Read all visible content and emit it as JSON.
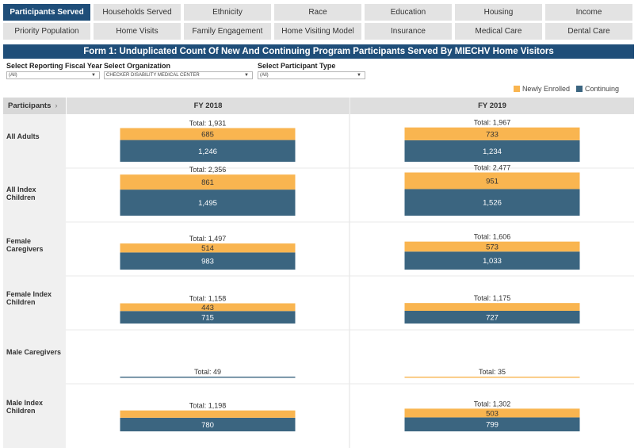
{
  "tabs_row1": [
    "Participants Served",
    "Households Served",
    "Ethnicity",
    "Race",
    "Education",
    "Housing",
    "Income"
  ],
  "tabs_row2": [
    "Priority Population",
    "Home Visits",
    "Family Engagement",
    "Home Visiting Model",
    "Insurance",
    "Medical Care",
    "Dental Care"
  ],
  "title": "Form 1: Unduplicated Count Of New And Continuing Program Participants Served By MIECHV Home Visitors",
  "filters": {
    "fiscal_year": {
      "label": "Select Reporting Fiscal Year",
      "value": "(All)"
    },
    "organization": {
      "label": "Select Organization",
      "value": "CHECKER DISABILITY MEDICAL CENTER"
    },
    "participant_type": {
      "label": "Select Participant Type",
      "value": "(All)"
    }
  },
  "table": {
    "row_header": "Participants",
    "sort_icon": "›"
  },
  "chart_data": {
    "type": "bar",
    "stacked": true,
    "orientation": "vertical-stack",
    "categories": [
      "All Adults",
      "All Index Children",
      "Female Caregivers",
      "Female Index Children",
      "Male Caregivers",
      "Male Index Children"
    ],
    "columns": [
      "FY 2018",
      "FY 2019"
    ],
    "series": [
      {
        "name": "Newly Enrolled",
        "color": "#f9b550",
        "values": {
          "FY 2018": [
            685,
            861,
            514,
            443,
            null,
            null
          ],
          "FY 2019": [
            733,
            951,
            573,
            null,
            null,
            503
          ]
        }
      },
      {
        "name": "Continuing",
        "color": "#3b6580",
        "values": {
          "FY 2018": [
            1246,
            1495,
            983,
            715,
            null,
            780
          ],
          "FY 2019": [
            1234,
            1526,
            1033,
            727,
            null,
            799
          ]
        }
      }
    ],
    "totals": {
      "FY 2018": [
        1931,
        2356,
        1497,
        1158,
        49,
        1198
      ],
      "FY 2019": [
        1967,
        2477,
        1606,
        1175,
        35,
        1302
      ]
    },
    "total_prefix": "Total: ",
    "legend": [
      "Newly Enrolled",
      "Continuing"
    ],
    "legend_position": "top-right"
  }
}
